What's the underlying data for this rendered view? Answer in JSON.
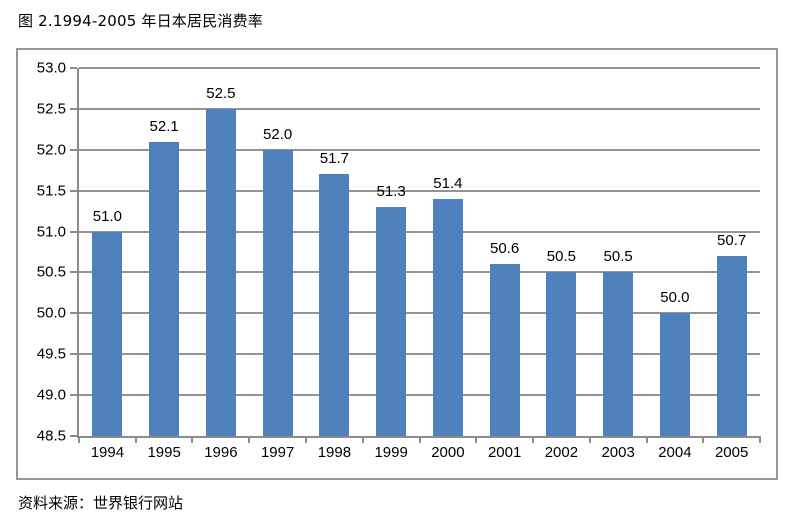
{
  "title": "图 2.1994-2005 年日本居民消费率",
  "source": "资料来源：世界银行网站",
  "colors": {
    "bar": "#4f81bd",
    "gridline": "#949494",
    "axis": "#8c8c8c",
    "chart_border": "#969696",
    "text": "#000000"
  },
  "chart_data": {
    "type": "bar",
    "title": "图 2.1994-2005 年日本居民消费率",
    "categories": [
      "1994",
      "1995",
      "1996",
      "1997",
      "1998",
      "1999",
      "2000",
      "2001",
      "2002",
      "2003",
      "2004",
      "2005"
    ],
    "values": [
      51.0,
      52.1,
      52.5,
      52.0,
      51.7,
      51.3,
      51.4,
      50.6,
      50.5,
      50.5,
      50.0,
      50.7
    ],
    "value_labels": [
      "51.0",
      "52.1",
      "52.5",
      "52.0",
      "51.7",
      "51.3",
      "51.4",
      "50.6",
      "50.5",
      "50.5",
      "50.0",
      "50.7"
    ],
    "xlabel": "",
    "ylabel": "",
    "ylim": [
      48.5,
      53.0
    ],
    "ytick_step": 0.5,
    "ytick_labels": [
      "53.0",
      "52.5",
      "52.0",
      "51.5",
      "51.0",
      "50.5",
      "50.0",
      "49.5",
      "49.0",
      "48.5"
    ],
    "grid": true,
    "legend_position": "none",
    "data_labels": true
  }
}
